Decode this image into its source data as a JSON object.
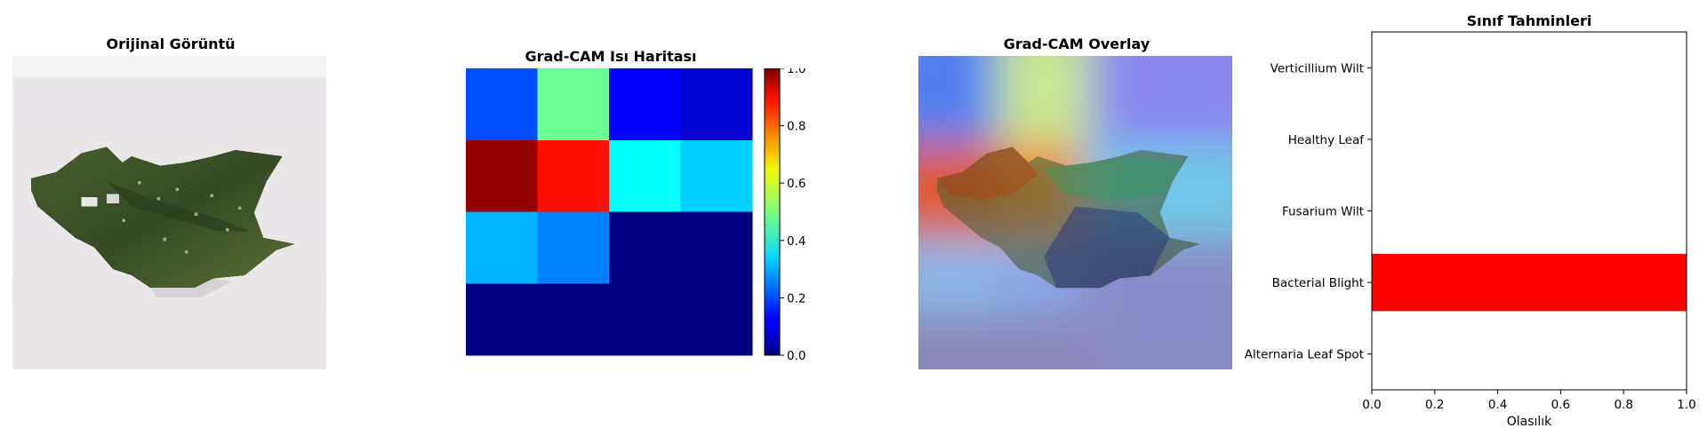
{
  "panels": {
    "original": {
      "title": "Orijinal Görüntü"
    },
    "heatmap": {
      "title": "Grad-CAM Isı Haritası"
    },
    "overlay": {
      "title": "Grad-CAM Overlay"
    },
    "predictions": {
      "title": "Sınıf Tahminleri"
    }
  },
  "chart_data": [
    {
      "type": "heatmap",
      "title": "Grad-CAM Isı Haritası",
      "colormap": "jet",
      "rows": 4,
      "cols": 4,
      "values": [
        [
          0.2,
          0.48,
          0.12,
          0.08
        ],
        [
          0.98,
          0.86,
          0.38,
          0.33
        ],
        [
          0.3,
          0.25,
          0.0,
          0.0
        ],
        [
          0.0,
          0.0,
          0.0,
          0.0
        ]
      ],
      "colorbar": {
        "range": [
          0.0,
          1.0
        ],
        "ticks": [
          "0.0",
          "0.2",
          "0.4",
          "0.6",
          "0.8",
          "1.0"
        ]
      }
    },
    {
      "type": "bar",
      "orientation": "horizontal",
      "title": "Sınıf Tahminleri",
      "categories": [
        "Alternaria Leaf Spot",
        "Bacterial Blight",
        "Fusarium Wilt",
        "Healthy Leaf",
        "Verticillium Wilt"
      ],
      "values": [
        0.0,
        1.0,
        0.0,
        0.0,
        0.0
      ],
      "bar_color": "#ff0000",
      "xlabel": "Olasılık",
      "xlim": [
        0.0,
        1.0
      ],
      "xticks": [
        "0.0",
        "0.2",
        "0.4",
        "0.6",
        "0.8",
        "1.0"
      ]
    }
  ],
  "colors": {
    "bar": "#ff0000",
    "background": "#ffffff"
  }
}
